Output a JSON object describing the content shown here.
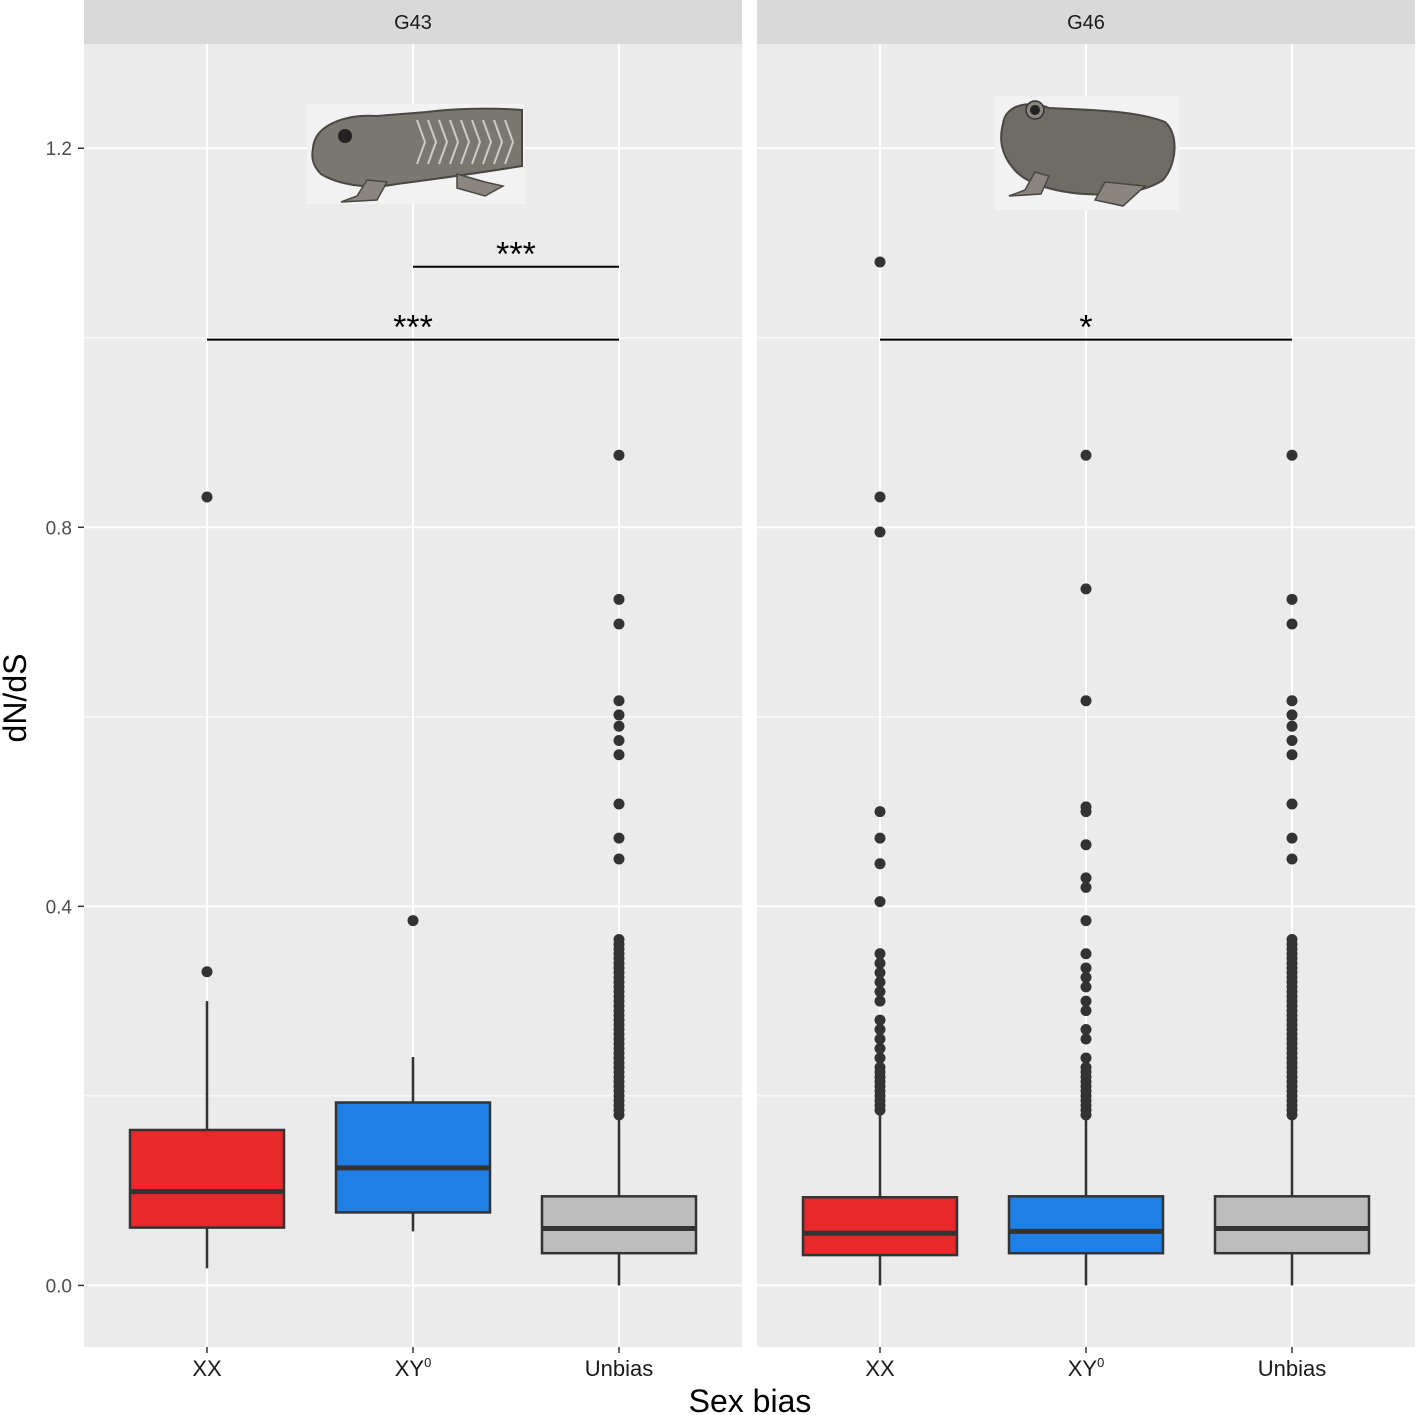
{
  "colors": {
    "panel_bg": "#ebebeb",
    "strip_bg": "#d9d9d9",
    "grid": "#ffffff",
    "xx": "#e8282b",
    "xy": "#1e7fe6",
    "unbias": "#bdbdbd",
    "outline": "#333333",
    "point": "#333333"
  },
  "icons": {
    "left_panel": "tadpole-icon",
    "right_panel": "frog-icon"
  },
  "chart_data": {
    "type": "boxplot",
    "xlabel": "Sex bias",
    "ylabel": "dN/dS",
    "ylim": [
      -0.065,
      1.31
    ],
    "yticks": [
      0.0,
      0.4,
      0.8,
      1.2
    ],
    "ytick_labels": [
      "0.0",
      "0.4",
      "0.8",
      "1.2"
    ],
    "grid": true,
    "categories": [
      "XX",
      "XY",
      "Unbias"
    ],
    "category_labels": [
      {
        "base": "XX",
        "sup": ""
      },
      {
        "base": "XY",
        "sup": "0"
      },
      {
        "base": "Unbias",
        "sup": ""
      }
    ],
    "panels": [
      {
        "title": "G43",
        "boxes": [
          {
            "category": "XX",
            "whisker_low": 0.018,
            "q1": 0.061,
            "median": 0.099,
            "q3": 0.164,
            "whisker_high": 0.3,
            "outliers": [
              0.331,
              0.832
            ]
          },
          {
            "category": "XY",
            "whisker_low": 0.057,
            "q1": 0.077,
            "median": 0.124,
            "q3": 0.193,
            "whisker_high": 0.241,
            "outliers": [
              0.385
            ]
          },
          {
            "category": "Unbias",
            "whisker_low": 0.0,
            "q1": 0.034,
            "median": 0.06,
            "q3": 0.094,
            "whisker_high": 0.176,
            "outliers": [
              0.18,
              0.185,
              0.19,
              0.195,
              0.2,
              0.205,
              0.21,
              0.215,
              0.22,
              0.225,
              0.23,
              0.235,
              0.24,
              0.245,
              0.25,
              0.255,
              0.26,
              0.265,
              0.27,
              0.275,
              0.28,
              0.285,
              0.29,
              0.295,
              0.3,
              0.305,
              0.31,
              0.315,
              0.32,
              0.325,
              0.33,
              0.335,
              0.34,
              0.345,
              0.35,
              0.355,
              0.36,
              0.365,
              0.45,
              0.472,
              0.508,
              0.56,
              0.575,
              0.59,
              0.602,
              0.617,
              0.698,
              0.724,
              0.876
            ]
          }
        ],
        "comparisons": [
          {
            "from": "XY",
            "to": "Unbias",
            "y": 1.075,
            "label": "***"
          },
          {
            "from": "XX",
            "to": "Unbias",
            "y": 0.998,
            "label": "***"
          }
        ]
      },
      {
        "title": "G46",
        "boxes": [
          {
            "category": "XX",
            "whisker_low": 0.0,
            "q1": 0.032,
            "median": 0.055,
            "q3": 0.093,
            "whisker_high": 0.18,
            "outliers": [
              0.185,
              0.19,
              0.195,
              0.2,
              0.205,
              0.21,
              0.215,
              0.22,
              0.225,
              0.23,
              0.24,
              0.25,
              0.26,
              0.27,
              0.28,
              0.3,
              0.31,
              0.32,
              0.33,
              0.34,
              0.35,
              0.405,
              0.445,
              0.472,
              0.5,
              0.795,
              0.832,
              1.08
            ]
          },
          {
            "category": "XY",
            "whisker_low": 0.0,
            "q1": 0.034,
            "median": 0.057,
            "q3": 0.094,
            "whisker_high": 0.176,
            "outliers": [
              0.18,
              0.185,
              0.19,
              0.195,
              0.2,
              0.205,
              0.21,
              0.215,
              0.22,
              0.225,
              0.23,
              0.24,
              0.26,
              0.27,
              0.29,
              0.3,
              0.315,
              0.325,
              0.335,
              0.35,
              0.385,
              0.42,
              0.43,
              0.465,
              0.5,
              0.505,
              0.617,
              0.735,
              0.876
            ]
          },
          {
            "category": "Unbias",
            "whisker_low": 0.0,
            "q1": 0.034,
            "median": 0.06,
            "q3": 0.094,
            "whisker_high": 0.176,
            "outliers": [
              0.18,
              0.185,
              0.19,
              0.195,
              0.2,
              0.205,
              0.21,
              0.215,
              0.22,
              0.225,
              0.23,
              0.235,
              0.24,
              0.245,
              0.25,
              0.255,
              0.26,
              0.265,
              0.27,
              0.275,
              0.28,
              0.285,
              0.29,
              0.295,
              0.3,
              0.305,
              0.31,
              0.315,
              0.32,
              0.325,
              0.33,
              0.335,
              0.34,
              0.345,
              0.35,
              0.355,
              0.36,
              0.365,
              0.45,
              0.472,
              0.508,
              0.56,
              0.575,
              0.59,
              0.602,
              0.617,
              0.698,
              0.724,
              0.876
            ]
          }
        ],
        "comparisons": [
          {
            "from": "XX",
            "to": "Unbias",
            "y": 0.998,
            "label": "*"
          }
        ]
      }
    ]
  }
}
